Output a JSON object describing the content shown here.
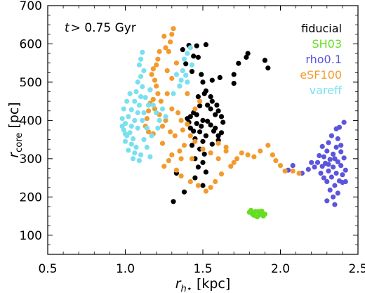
{
  "chart_data": {
    "type": "scatter",
    "title": "",
    "xlabel": "r_{h⋆} [kpc]",
    "xlabel_parts": {
      "main": "r",
      "sub": "h⋆",
      "unit": " [kpc]"
    },
    "ylabel": "r_core [pc]",
    "ylabel_parts": {
      "main": "r",
      "sub": "core",
      "unit": " [pc]"
    },
    "xlim": [
      0.5,
      2.5
    ],
    "ylim": [
      50,
      700
    ],
    "xticks": [
      "0.5",
      "1.0",
      "1.5",
      "2.0",
      "2.5"
    ],
    "yticks": [
      "100",
      "200",
      "300",
      "400",
      "500",
      "600",
      "700"
    ],
    "annotation": "t > 0.75 Gyr",
    "annotation_parts": {
      "main": "t",
      "rest": "> 0.75 Gyr"
    },
    "legend_placement": "top-right",
    "grid": false,
    "series": [
      {
        "name": "fiducial",
        "color": "#000000",
        "points": [
          [
            1.37,
            585
          ],
          [
            1.41,
            596
          ],
          [
            1.44,
            568
          ],
          [
            1.46,
            595
          ],
          [
            1.47,
            565
          ],
          [
            1.52,
            598
          ],
          [
            1.39,
            548
          ],
          [
            1.43,
            528
          ],
          [
            1.49,
            520
          ],
          [
            1.5,
            500
          ],
          [
            1.56,
            505
          ],
          [
            1.61,
            512
          ],
          [
            1.7,
            497
          ],
          [
            1.78,
            565
          ],
          [
            1.79,
            575
          ],
          [
            1.73,
            549
          ],
          [
            1.9,
            557
          ],
          [
            1.92,
            537
          ],
          [
            1.7,
            520
          ],
          [
            1.52,
            477
          ],
          [
            1.47,
            462
          ],
          [
            1.56,
            450
          ],
          [
            1.48,
            438
          ],
          [
            1.55,
            430
          ],
          [
            1.6,
            425
          ],
          [
            1.62,
            410
          ],
          [
            1.44,
            420
          ],
          [
            1.4,
            405
          ],
          [
            1.5,
            400
          ],
          [
            1.46,
            392
          ],
          [
            1.55,
            388
          ],
          [
            1.42,
            380
          ],
          [
            1.48,
            370
          ],
          [
            1.52,
            360
          ],
          [
            1.57,
            372
          ],
          [
            1.45,
            352
          ],
          [
            1.5,
            345
          ],
          [
            1.56,
            338
          ],
          [
            1.6,
            348
          ],
          [
            1.43,
            335
          ],
          [
            1.48,
            325
          ],
          [
            1.51,
            312
          ],
          [
            1.45,
            300
          ],
          [
            1.5,
            290
          ],
          [
            1.47,
            278
          ],
          [
            1.52,
            265
          ],
          [
            1.45,
            250
          ],
          [
            1.5,
            230
          ],
          [
            1.33,
            262
          ],
          [
            1.31,
            188
          ],
          [
            1.38,
            213
          ],
          [
            1.42,
            410
          ],
          [
            1.58,
            415
          ],
          [
            1.63,
            395
          ],
          [
            1.55,
            462
          ],
          [
            1.51,
            470
          ],
          [
            1.53,
            440
          ],
          [
            1.59,
            440
          ],
          [
            1.46,
            415
          ],
          [
            1.41,
            395
          ],
          [
            1.44,
            372
          ],
          [
            1.49,
            385
          ],
          [
            1.53,
            398
          ],
          [
            1.58,
            380
          ],
          [
            1.62,
            368
          ],
          [
            1.6,
            360
          ]
        ]
      },
      {
        "name": "SH03",
        "color": "#66dd22",
        "points": [
          [
            1.8,
            160
          ],
          [
            1.82,
            155
          ],
          [
            1.84,
            162
          ],
          [
            1.86,
            152
          ],
          [
            1.87,
            158
          ],
          [
            1.89,
            150
          ],
          [
            1.81,
            165
          ],
          [
            1.85,
            148
          ],
          [
            1.88,
            163
          ],
          [
            1.83,
            152
          ],
          [
            1.9,
            155
          ],
          [
            1.86,
            162
          ]
        ]
      },
      {
        "name": "rho0.1",
        "color": "#5b55dd",
        "points": [
          [
            2.41,
            395
          ],
          [
            2.38,
            382
          ],
          [
            2.36,
            378
          ],
          [
            2.33,
            360
          ],
          [
            2.37,
            352
          ],
          [
            2.31,
            342
          ],
          [
            2.36,
            330
          ],
          [
            2.3,
            320
          ],
          [
            2.34,
            312
          ],
          [
            2.39,
            318
          ],
          [
            2.28,
            305
          ],
          [
            2.32,
            298
          ],
          [
            2.37,
            292
          ],
          [
            2.41,
            302
          ],
          [
            2.29,
            288
          ],
          [
            2.34,
            278
          ],
          [
            2.39,
            282
          ],
          [
            2.31,
            268
          ],
          [
            2.36,
            262
          ],
          [
            2.4,
            258
          ],
          [
            2.33,
            252
          ],
          [
            2.38,
            242
          ],
          [
            2.3,
            240
          ],
          [
            2.35,
            230
          ],
          [
            2.4,
            238
          ],
          [
            2.32,
            218
          ],
          [
            2.37,
            210
          ],
          [
            2.34,
            200
          ],
          [
            2.3,
            190
          ],
          [
            2.35,
            180
          ],
          [
            2.25,
            308
          ],
          [
            2.22,
            278
          ],
          [
            2.18,
            272
          ],
          [
            2.14,
            262
          ],
          [
            2.08,
            282
          ],
          [
            2.05,
            270
          ],
          [
            2.27,
            332
          ],
          [
            2.24,
            290
          ],
          [
            2.26,
            262
          ],
          [
            2.28,
            250
          ],
          [
            2.42,
            270
          ],
          [
            2.42,
            240
          ],
          [
            2.39,
            335
          ],
          [
            2.35,
            300
          ],
          [
            2.31,
            285
          ],
          [
            2.27,
            280
          ],
          [
            2.2,
            290
          ]
        ]
      },
      {
        "name": "eSF100",
        "color": "#f39a2c",
        "points": [
          [
            1.31,
            640
          ],
          [
            1.3,
            625
          ],
          [
            1.29,
            605
          ],
          [
            1.26,
            590
          ],
          [
            1.22,
            580
          ],
          [
            1.21,
            560
          ],
          [
            1.2,
            545
          ],
          [
            1.18,
            535
          ],
          [
            1.17,
            520
          ],
          [
            1.19,
            505
          ],
          [
            1.2,
            490
          ],
          [
            1.21,
            470
          ],
          [
            1.18,
            455
          ],
          [
            1.16,
            445
          ],
          [
            1.15,
            425
          ],
          [
            1.14,
            405
          ],
          [
            1.13,
            385
          ],
          [
            1.15,
            370
          ],
          [
            1.18,
            365
          ],
          [
            1.23,
            450
          ],
          [
            1.27,
            470
          ],
          [
            1.3,
            430
          ],
          [
            1.34,
            420
          ],
          [
            1.36,
            400
          ],
          [
            1.4,
            390
          ],
          [
            1.37,
            375
          ],
          [
            1.42,
            360
          ],
          [
            1.45,
            345
          ],
          [
            1.38,
            335
          ],
          [
            1.35,
            320
          ],
          [
            1.3,
            310
          ],
          [
            1.28,
            295
          ],
          [
            1.25,
            280
          ],
          [
            1.33,
            270
          ],
          [
            1.36,
            255
          ],
          [
            1.42,
            240
          ],
          [
            1.47,
            230
          ],
          [
            1.52,
            215
          ],
          [
            1.55,
            225
          ],
          [
            1.58,
            240
          ],
          [
            1.62,
            260
          ],
          [
            1.68,
            280
          ],
          [
            1.72,
            300
          ],
          [
            1.75,
            315
          ],
          [
            1.79,
            310
          ],
          [
            1.83,
            305
          ],
          [
            1.87,
            320
          ],
          [
            1.92,
            335
          ],
          [
            1.95,
            310
          ],
          [
            1.97,
            295
          ],
          [
            2.0,
            282
          ],
          [
            2.03,
            268
          ],
          [
            2.08,
            268
          ],
          [
            2.12,
            262
          ],
          [
            1.5,
            325
          ],
          [
            1.55,
            315
          ],
          [
            1.6,
            300
          ],
          [
            1.45,
            430
          ],
          [
            1.48,
            450
          ],
          [
            1.22,
            415
          ],
          [
            1.26,
            400
          ],
          [
            1.29,
            370
          ],
          [
            1.32,
            360
          ],
          [
            1.24,
            340
          ],
          [
            1.4,
            470
          ],
          [
            1.35,
            490
          ],
          [
            1.3,
            510
          ],
          [
            1.27,
            530
          ],
          [
            1.33,
            550
          ],
          [
            1.25,
            620
          ],
          [
            1.28,
            580
          ],
          [
            1.16,
            480
          ],
          [
            1.19,
            430
          ],
          [
            1.24,
            385
          ],
          [
            1.6,
            340
          ],
          [
            1.65,
            330
          ],
          [
            1.7,
            290
          ],
          [
            1.43,
            300
          ],
          [
            1.36,
            300
          ],
          [
            1.65,
            320
          ]
        ]
      },
      {
        "name": "vareff",
        "color": "#79e0f0",
        "points": [
          [
            1.11,
            578
          ],
          [
            1.1,
            560
          ],
          [
            1.09,
            545
          ],
          [
            1.12,
            530
          ],
          [
            1.1,
            515
          ],
          [
            1.08,
            500
          ],
          [
            1.11,
            488
          ],
          [
            1.07,
            475
          ],
          [
            1.1,
            462
          ],
          [
            1.06,
            450
          ],
          [
            1.09,
            440
          ],
          [
            1.04,
            428
          ],
          [
            1.08,
            420
          ],
          [
            1.02,
            410
          ],
          [
            1.06,
            400
          ],
          [
            1.0,
            392
          ],
          [
            1.04,
            385
          ],
          [
            0.99,
            375
          ],
          [
            1.03,
            368
          ],
          [
            1.01,
            360
          ],
          [
            1.05,
            352
          ],
          [
            1.0,
            345
          ],
          [
            1.04,
            338
          ],
          [
            1.07,
            330
          ],
          [
            1.02,
            322
          ],
          [
            1.06,
            315
          ],
          [
            1.1,
            310
          ],
          [
            1.05,
            300
          ],
          [
            1.09,
            295
          ],
          [
            1.12,
            350
          ],
          [
            1.14,
            380
          ],
          [
            1.12,
            420
          ],
          [
            1.15,
            440
          ],
          [
            1.13,
            460
          ],
          [
            1.16,
            480
          ],
          [
            1.18,
            440
          ],
          [
            1.2,
            420
          ],
          [
            1.22,
            400
          ],
          [
            1.24,
            430
          ],
          [
            1.26,
            410
          ],
          [
            1.21,
            380
          ],
          [
            1.17,
            360
          ],
          [
            1.08,
            380
          ],
          [
            1.11,
            400
          ],
          [
            0.98,
            405
          ],
          [
            0.99,
            430
          ],
          [
            1.01,
            450
          ],
          [
            1.03,
            470
          ],
          [
            1.0,
            365
          ],
          [
            0.98,
            385
          ],
          [
            1.42,
            590
          ],
          [
            1.4,
            575
          ],
          [
            1.38,
            560
          ],
          [
            1.43,
            545
          ],
          [
            1.37,
            530
          ],
          [
            1.39,
            518
          ],
          [
            1.4,
            500
          ],
          [
            1.35,
            490
          ],
          [
            1.36,
            505
          ],
          [
            1.33,
            520
          ],
          [
            1.31,
            470
          ],
          [
            1.14,
            330
          ],
          [
            1.16,
            305
          ]
        ]
      }
    ]
  }
}
